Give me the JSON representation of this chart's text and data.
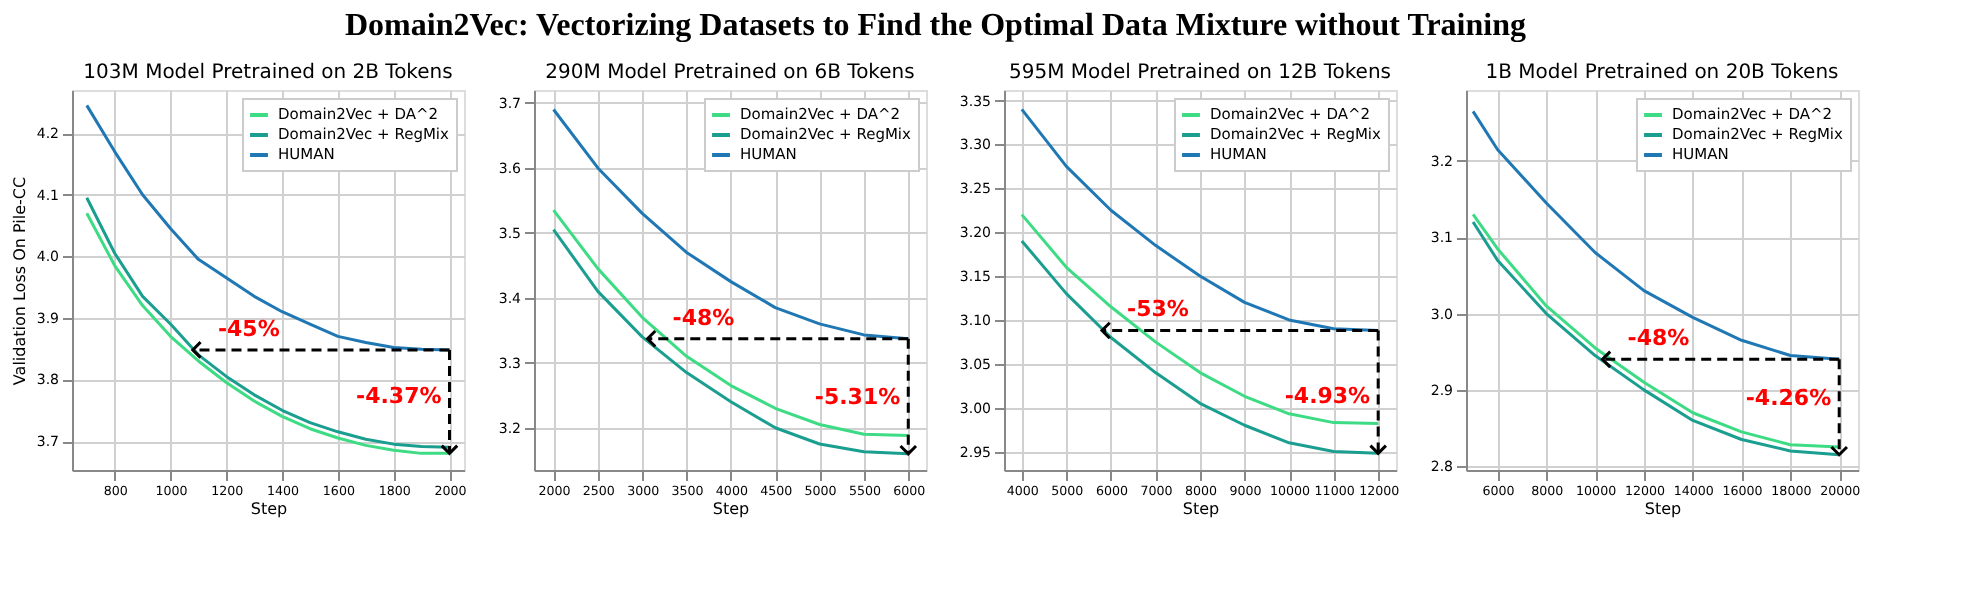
{
  "chart_data": [
    {
      "type": "line",
      "title": "103M Model Pretrained on 2B Tokens",
      "xlabel": "Step",
      "ylabel": "Validation Loss On Pile-CC",
      "grid": true,
      "legend": "top right",
      "marker": "none",
      "line_style": "solid",
      "x": [
        700,
        800,
        900,
        1000,
        1100,
        1200,
        1300,
        1400,
        1500,
        1600,
        1700,
        1800,
        1900,
        2000
      ],
      "xlim": [
        647,
        2052
      ],
      "xticks": [
        800,
        1000,
        1200,
        1400,
        1600,
        1800,
        2000
      ],
      "ylim": [
        3.653,
        4.27
      ],
      "yticks": [
        3.7,
        3.8,
        3.9,
        {
          "value": 4.0,
          "label": "4.0"
        },
        4.1,
        4.2
      ],
      "series": [
        {
          "name": "Domain2Vec + DA^2",
          "color": "#3ddc84",
          "values": [
            4.07,
            3.985,
            3.92,
            3.87,
            3.83,
            3.795,
            3.765,
            3.74,
            3.72,
            3.705,
            3.693,
            3.685,
            3.68,
            3.68
          ]
        },
        {
          "name": "Domain2Vec + RegMix",
          "color": "#1a9e8f",
          "values": [
            4.095,
            4.005,
            3.935,
            3.89,
            3.84,
            3.805,
            3.775,
            3.75,
            3.73,
            3.715,
            3.703,
            3.695,
            3.691,
            3.69
          ]
        },
        {
          "name": "HUMAN",
          "color": "#1f77b4",
          "values": [
            4.245,
            4.17,
            4.1,
            4.045,
            3.995,
            3.965,
            3.935,
            3.91,
            3.89,
            3.87,
            3.86,
            3.852,
            3.849,
            3.848
          ]
        }
      ],
      "annotations": [
        "Domain2Vec: Vectorizing Datasets to Find the Optimal Data Mixture without Training",
        {
          "text": "-45%",
          "x": 1080,
          "y": 3.848
        },
        {
          "text": "-4.37%",
          "x": 2000,
          "y": 3.68
        }
      ]
    },
    {
      "type": "line",
      "title": "290M Model Pretrained on 6B Tokens",
      "xlabel": "Step",
      "grid": true,
      "legend": "top right",
      "marker": "none",
      "line_style": "solid",
      "x": [
        2000,
        2500,
        3000,
        3500,
        4000,
        4500,
        5000,
        5500,
        6000
      ],
      "xlim": [
        1780,
        6200
      ],
      "xticks": [
        2000,
        2500,
        3000,
        3500,
        4000,
        4500,
        5000,
        5500,
        6000
      ],
      "ylim": [
        3.135,
        3.72
      ],
      "yticks": [
        3.2,
        3.3,
        3.4,
        3.5,
        3.6,
        3.7
      ],
      "series": [
        {
          "name": "Domain2Vec + DA^2",
          "color": "#3ddc84",
          "values": [
            3.535,
            3.445,
            3.37,
            3.31,
            3.265,
            3.23,
            3.205,
            3.19,
            3.188
          ]
        },
        {
          "name": "Domain2Vec + RegMix",
          "color": "#1a9e8f",
          "values": [
            3.505,
            3.41,
            3.34,
            3.285,
            3.24,
            3.2,
            3.175,
            3.163,
            3.16
          ]
        },
        {
          "name": "HUMAN",
          "color": "#1f77b4",
          "values": [
            3.69,
            3.6,
            3.53,
            3.47,
            3.425,
            3.385,
            3.36,
            3.343,
            3.337
          ]
        }
      ],
      "annotations": [
        {
          "text": "-48%",
          "x": 3060,
          "y": 3.337
        },
        {
          "text": "-5.31%",
          "x": 6000,
          "y": 3.16
        }
      ]
    },
    {
      "type": "line",
      "title": "595M Model Pretrained on 12B Tokens",
      "xlabel": "Step",
      "grid": true,
      "legend": "top right",
      "marker": "none",
      "line_style": "solid",
      "x": [
        4000,
        5000,
        6000,
        7000,
        8000,
        9000,
        10000,
        11000,
        12000
      ],
      "xlim": [
        3600,
        12400
      ],
      "xticks": [
        4000,
        5000,
        6000,
        7000,
        8000,
        9000,
        10000,
        11000,
        12000
      ],
      "ylim": [
        2.929,
        3.362
      ],
      "yticks": [
        2.95,
        {
          "value": 3.0,
          "label": "3.00"
        },
        3.05,
        {
          "value": 3.1,
          "label": "3.10"
        },
        3.15,
        {
          "value": 3.2,
          "label": "3.20"
        },
        3.25,
        {
          "value": 3.3,
          "label": "3.30"
        },
        3.35
      ],
      "series": [
        {
          "name": "Domain2Vec + DA^2",
          "color": "#3ddc84",
          "values": [
            3.22,
            3.16,
            3.115,
            3.075,
            3.04,
            3.013,
            2.993,
            2.983,
            2.982
          ]
        },
        {
          "name": "Domain2Vec + RegMix",
          "color": "#1a9e8f",
          "values": [
            3.19,
            3.13,
            3.08,
            3.04,
            3.005,
            2.98,
            2.96,
            2.95,
            2.948
          ]
        },
        {
          "name": "HUMAN",
          "color": "#1f77b4",
          "values": [
            3.34,
            3.275,
            3.225,
            3.185,
            3.15,
            3.12,
            3.1,
            3.09,
            3.088
          ]
        }
      ],
      "annotations": [
        {
          "text": "-53%",
          "x": 5800,
          "y": 3.088
        },
        {
          "text": "-4.93%",
          "x": 12000,
          "y": 2.948
        }
      ]
    },
    {
      "type": "line",
      "title": "1B Model Pretrained on 20B Tokens",
      "xlabel": "Step",
      "grid": true,
      "legend": "top right",
      "marker": "none",
      "line_style": "solid",
      "x": [
        5000,
        6000,
        8000,
        10000,
        12000,
        14000,
        16000,
        18000,
        20000
      ],
      "xlim": [
        4710,
        20770
      ],
      "xticks": [
        6000,
        8000,
        10000,
        12000,
        14000,
        16000,
        18000,
        20000
      ],
      "ylim": [
        2.795,
        3.293
      ],
      "yticks": [
        2.8,
        2.9,
        {
          "value": 3.0,
          "label": "3.0"
        },
        3.1,
        3.2
      ],
      "series": [
        {
          "name": "Domain2Vec + DA^2",
          "color": "#3ddc84",
          "values": [
            3.13,
            3.085,
            3.01,
            2.955,
            2.91,
            2.87,
            2.845,
            2.828,
            2.825
          ]
        },
        {
          "name": "Domain2Vec + RegMix",
          "color": "#1a9e8f",
          "values": [
            3.12,
            3.07,
            3.0,
            2.945,
            2.9,
            2.86,
            2.835,
            2.82,
            2.815
          ]
        },
        {
          "name": "HUMAN",
          "color": "#1f77b4",
          "values": [
            3.265,
            3.215,
            3.145,
            3.08,
            3.03,
            2.995,
            2.965,
            2.945,
            2.94
          ]
        }
      ],
      "annotations": [
        {
          "text": "-48%",
          "x": 10300,
          "y": 2.94
        },
        {
          "text": "-4.26%",
          "x": 20000,
          "y": 2.815
        }
      ]
    }
  ]
}
